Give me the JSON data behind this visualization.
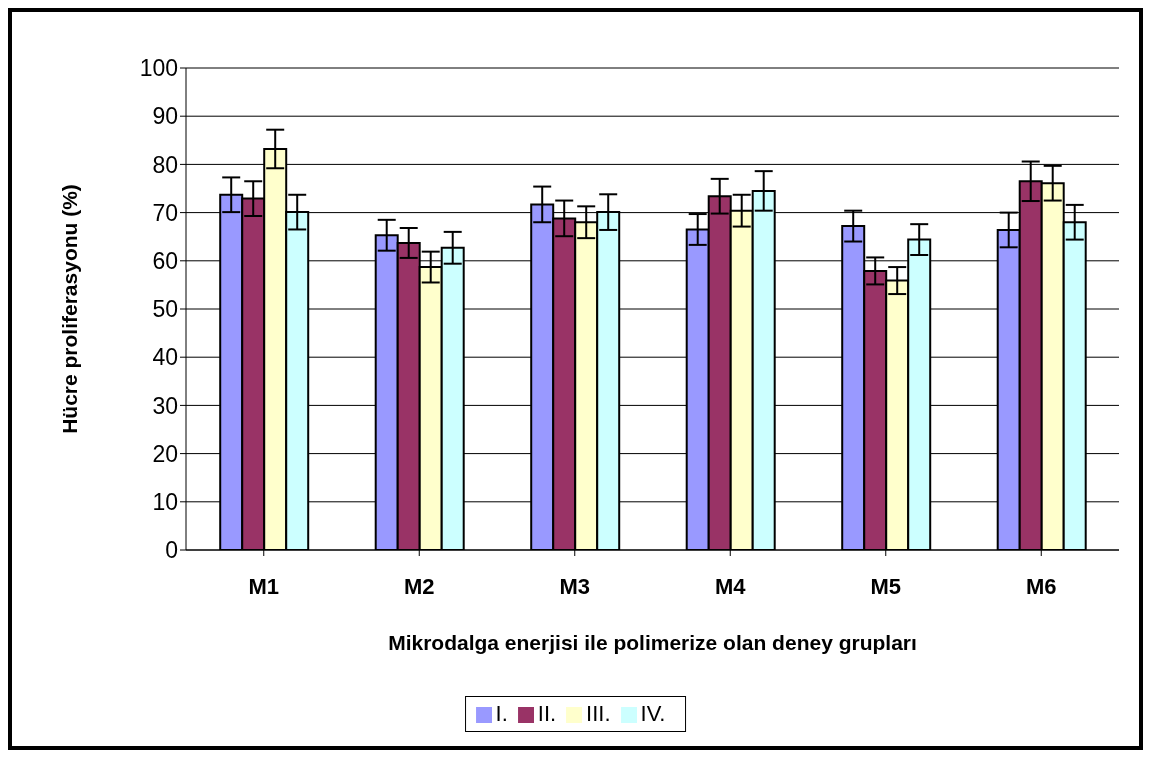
{
  "chart_data": {
    "type": "bar",
    "xlabel": "Mikrodalga enerjisi ile polimerize olan deney grupları",
    "ylabel": "Hücre proliferasyonu (%)",
    "categories": [
      "M1",
      "M2",
      "M3",
      "M4",
      "M5",
      "M6"
    ],
    "series": [
      {
        "name": "I.",
        "color": "#9999ff",
        "values": [
          73.7,
          65.3,
          71.7,
          66.5,
          67.2,
          66.4
        ],
        "errors": [
          3.6,
          3.2,
          3.7,
          3.2,
          3.2,
          3.6
        ]
      },
      {
        "name": "II.",
        "color": "#993366",
        "values": [
          72.9,
          63.7,
          68.8,
          73.4,
          57.9,
          76.5
        ],
        "errors": [
          3.6,
          3.1,
          3.7,
          3.6,
          2.8,
          4.1
        ]
      },
      {
        "name": "III.",
        "color": "#ffffcc",
        "values": [
          83.2,
          58.7,
          68.0,
          70.4,
          55.9,
          76.1
        ],
        "errors": [
          4.0,
          3.2,
          3.3,
          3.3,
          2.8,
          3.6
        ]
      },
      {
        "name": "IV.",
        "color": "#ccffff",
        "values": [
          70.1,
          62.7,
          70.1,
          74.5,
          64.4,
          68.0
        ],
        "errors": [
          3.6,
          3.3,
          3.7,
          4.1,
          3.2,
          3.6
        ]
      }
    ],
    "ylim": [
      0,
      100
    ],
    "yticks": [
      0,
      10,
      20,
      30,
      40,
      50,
      60,
      70,
      80,
      90,
      100
    ],
    "grid": "y",
    "legend": "bottom"
  }
}
